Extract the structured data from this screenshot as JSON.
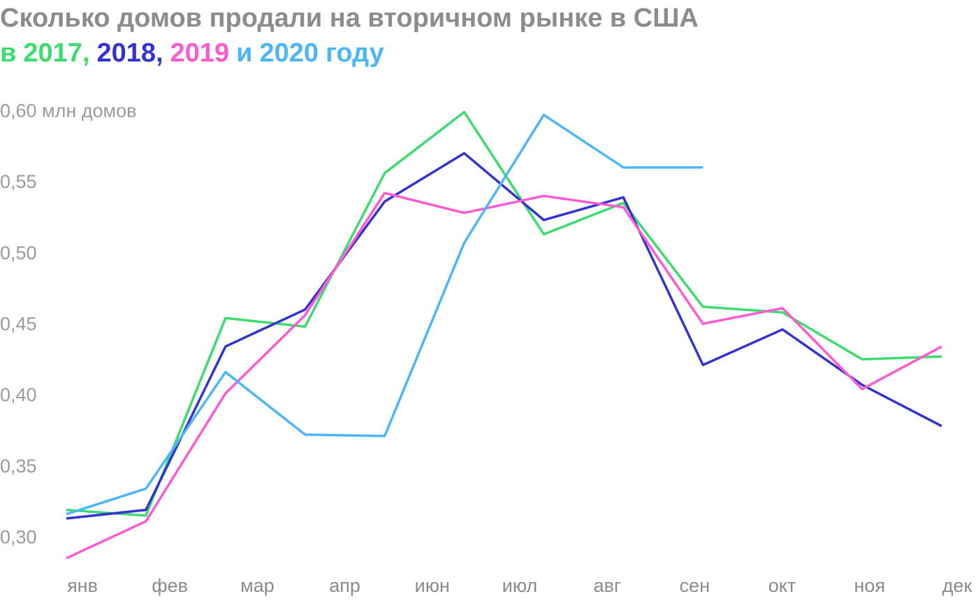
{
  "chart_data": {
    "type": "line",
    "title": "Сколько домов продали на вторичном рынке в США",
    "subtitle_words": [
      "в",
      ",",
      ",",
      "и",
      "году"
    ],
    "categories": [
      "янв",
      "фев",
      "мар",
      "апр",
      null,
      "июн",
      "июл",
      "авг",
      "сен",
      "окт",
      "ноя",
      "дек"
    ],
    "series": [
      {
        "name": "2017",
        "color": "#3ddc6e",
        "values": [
          0.32,
          0.316,
          0.455,
          0.449,
          0.557,
          0.6,
          0.514,
          0.536,
          0.463,
          0.459,
          0.426,
          0.428
        ]
      },
      {
        "name": "2018",
        "color": "#3333d1",
        "values": [
          0.314,
          0.32,
          0.435,
          0.461,
          0.537,
          0.571,
          0.524,
          0.54,
          0.422,
          0.447,
          0.408,
          0.379
        ]
      },
      {
        "name": "2019",
        "color": "#ff5ad0",
        "values": [
          0.286,
          0.312,
          0.402,
          0.457,
          0.543,
          0.529,
          0.541,
          0.533,
          0.451,
          0.462,
          0.405,
          0.435
        ]
      },
      {
        "name": "2020",
        "color": "#4db6f7",
        "values": [
          0.317,
          0.335,
          0.417,
          0.373,
          0.372,
          0.508,
          0.598,
          0.561,
          0.561,
          null,
          null,
          null
        ]
      }
    ],
    "ylim": [
      0.28,
      0.61
    ],
    "yticks": [
      {
        "value": 0.3,
        "label": "0,30"
      },
      {
        "value": 0.35,
        "label": "0,35"
      },
      {
        "value": 0.4,
        "label": "0,40"
      },
      {
        "value": 0.45,
        "label": "0,45"
      },
      {
        "value": 0.5,
        "label": "0,50"
      },
      {
        "value": 0.55,
        "label": "0,55"
      },
      {
        "value": 0.6,
        "label": "0,60 млн домов"
      }
    ],
    "grid": false
  }
}
